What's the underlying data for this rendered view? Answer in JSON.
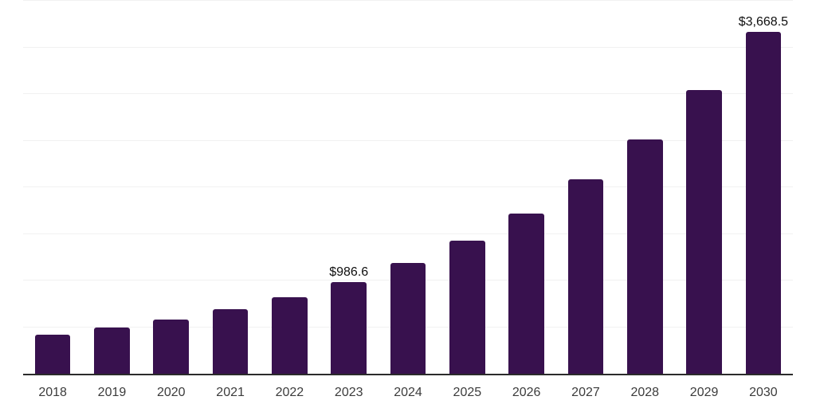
{
  "chart_data": {
    "type": "bar",
    "title": "",
    "xlabel": "",
    "ylabel": "",
    "categories": [
      "2018",
      "2019",
      "2020",
      "2021",
      "2022",
      "2023",
      "2024",
      "2025",
      "2026",
      "2027",
      "2028",
      "2029",
      "2030"
    ],
    "values": [
      420,
      495,
      580,
      690,
      820,
      986.6,
      1185,
      1430,
      1720,
      2085,
      2510,
      3045,
      3668.5
    ],
    "data_labels": [
      null,
      null,
      null,
      null,
      null,
      "$986.6",
      null,
      null,
      null,
      null,
      null,
      null,
      "$3,668.5"
    ],
    "ylim": [
      0,
      4000
    ],
    "gridline_step": 500,
    "grid": true,
    "legend_position": "none",
    "colors": {
      "bar": "#38114E",
      "gridline": "#F1F1F1",
      "axis_line": "#2B2B2B",
      "data_label": "#0F0F0F",
      "tick_label": "#3C3C3C",
      "background": "#FFFFFF"
    }
  }
}
